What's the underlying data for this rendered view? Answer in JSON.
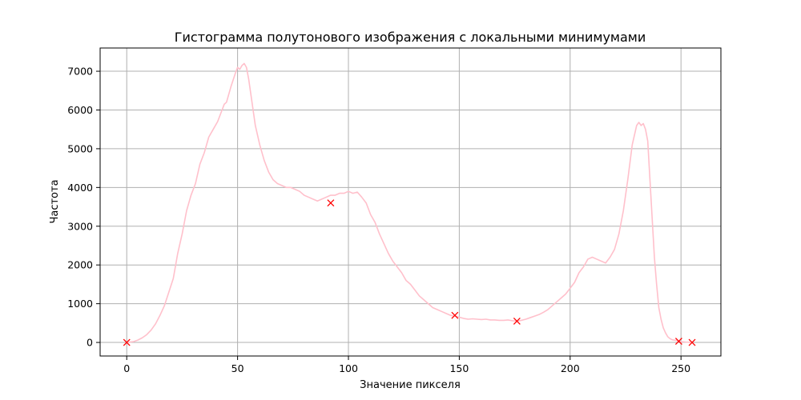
{
  "chart_data": {
    "type": "line",
    "title": "Гистограмма полутонового изображения с локальными минимумами",
    "xlabel": "Значение пикселя",
    "ylabel": "Частота",
    "xlim": [
      -12,
      268
    ],
    "ylim": [
      -350,
      7600
    ],
    "xticks": [
      0,
      50,
      100,
      150,
      200,
      250
    ],
    "yticks": [
      0,
      1000,
      2000,
      3000,
      4000,
      5000,
      6000,
      7000
    ],
    "grid": true,
    "colors": {
      "line": "#ffc0cb",
      "marker": "#ff0000"
    },
    "series": [
      {
        "values": [
          [
            0,
            0
          ],
          [
            3,
            20
          ],
          [
            5,
            60
          ],
          [
            7,
            120
          ],
          [
            9,
            200
          ],
          [
            11,
            320
          ],
          [
            13,
            480
          ],
          [
            15,
            700
          ],
          [
            17,
            950
          ],
          [
            19,
            1300
          ],
          [
            21,
            1650
          ],
          [
            23,
            2300
          ],
          [
            25,
            2800
          ],
          [
            27,
            3400
          ],
          [
            29,
            3800
          ],
          [
            31,
            4100
          ],
          [
            33,
            4600
          ],
          [
            35,
            4900
          ],
          [
            37,
            5300
          ],
          [
            39,
            5500
          ],
          [
            41,
            5700
          ],
          [
            43,
            6000
          ],
          [
            44,
            6150
          ],
          [
            45,
            6200
          ],
          [
            47,
            6600
          ],
          [
            49,
            6950
          ],
          [
            50,
            7100
          ],
          [
            51,
            7050
          ],
          [
            52,
            7150
          ],
          [
            53,
            7200
          ],
          [
            54,
            7100
          ],
          [
            55,
            6800
          ],
          [
            56,
            6400
          ],
          [
            58,
            5600
          ],
          [
            60,
            5100
          ],
          [
            62,
            4700
          ],
          [
            64,
            4400
          ],
          [
            66,
            4200
          ],
          [
            68,
            4100
          ],
          [
            70,
            4050
          ],
          [
            72,
            4000
          ],
          [
            74,
            4000
          ],
          [
            76,
            3950
          ],
          [
            78,
            3900
          ],
          [
            80,
            3800
          ],
          [
            82,
            3750
          ],
          [
            84,
            3700
          ],
          [
            86,
            3650
          ],
          [
            88,
            3700
          ],
          [
            90,
            3750
          ],
          [
            92,
            3800
          ],
          [
            94,
            3800
          ],
          [
            96,
            3850
          ],
          [
            98,
            3850
          ],
          [
            100,
            3900
          ],
          [
            102,
            3850
          ],
          [
            104,
            3880
          ],
          [
            106,
            3750
          ],
          [
            108,
            3600
          ],
          [
            110,
            3300
          ],
          [
            112,
            3100
          ],
          [
            114,
            2800
          ],
          [
            116,
            2550
          ],
          [
            118,
            2300
          ],
          [
            120,
            2100
          ],
          [
            122,
            1950
          ],
          [
            124,
            1800
          ],
          [
            126,
            1600
          ],
          [
            128,
            1500
          ],
          [
            130,
            1350
          ],
          [
            132,
            1200
          ],
          [
            134,
            1100
          ],
          [
            136,
            1000
          ],
          [
            138,
            900
          ],
          [
            140,
            850
          ],
          [
            142,
            800
          ],
          [
            144,
            750
          ],
          [
            146,
            700
          ],
          [
            148,
            680
          ],
          [
            150,
            650
          ],
          [
            152,
            620
          ],
          [
            154,
            600
          ],
          [
            156,
            610
          ],
          [
            158,
            600
          ],
          [
            160,
            590
          ],
          [
            162,
            600
          ],
          [
            164,
            580
          ],
          [
            166,
            580
          ],
          [
            168,
            570
          ],
          [
            170,
            570
          ],
          [
            172,
            580
          ],
          [
            174,
            560
          ],
          [
            176,
            550
          ],
          [
            178,
            570
          ],
          [
            180,
            600
          ],
          [
            182,
            640
          ],
          [
            184,
            680
          ],
          [
            186,
            720
          ],
          [
            188,
            780
          ],
          [
            190,
            850
          ],
          [
            192,
            950
          ],
          [
            194,
            1050
          ],
          [
            196,
            1150
          ],
          [
            198,
            1250
          ],
          [
            200,
            1400
          ],
          [
            202,
            1550
          ],
          [
            204,
            1800
          ],
          [
            206,
            1950
          ],
          [
            208,
            2150
          ],
          [
            210,
            2200
          ],
          [
            212,
            2150
          ],
          [
            214,
            2100
          ],
          [
            216,
            2050
          ],
          [
            218,
            2200
          ],
          [
            220,
            2400
          ],
          [
            222,
            2800
          ],
          [
            224,
            3400
          ],
          [
            226,
            4200
          ],
          [
            228,
            5100
          ],
          [
            230,
            5600
          ],
          [
            231,
            5680
          ],
          [
            232,
            5600
          ],
          [
            233,
            5650
          ],
          [
            234,
            5500
          ],
          [
            235,
            5200
          ],
          [
            236,
            4200
          ],
          [
            237,
            3200
          ],
          [
            238,
            2200
          ],
          [
            239,
            1500
          ],
          [
            240,
            900
          ],
          [
            241,
            600
          ],
          [
            242,
            380
          ],
          [
            243,
            250
          ],
          [
            244,
            150
          ],
          [
            245,
            100
          ],
          [
            246,
            70
          ],
          [
            248,
            50
          ],
          [
            250,
            20
          ],
          [
            252,
            10
          ],
          [
            255,
            0
          ]
        ]
      },
      {
        "style": "marker-x",
        "values": [
          [
            0,
            0
          ],
          [
            92,
            3600
          ],
          [
            148,
            700
          ],
          [
            176,
            550
          ],
          [
            249,
            30
          ],
          [
            255,
            0
          ]
        ]
      }
    ]
  }
}
